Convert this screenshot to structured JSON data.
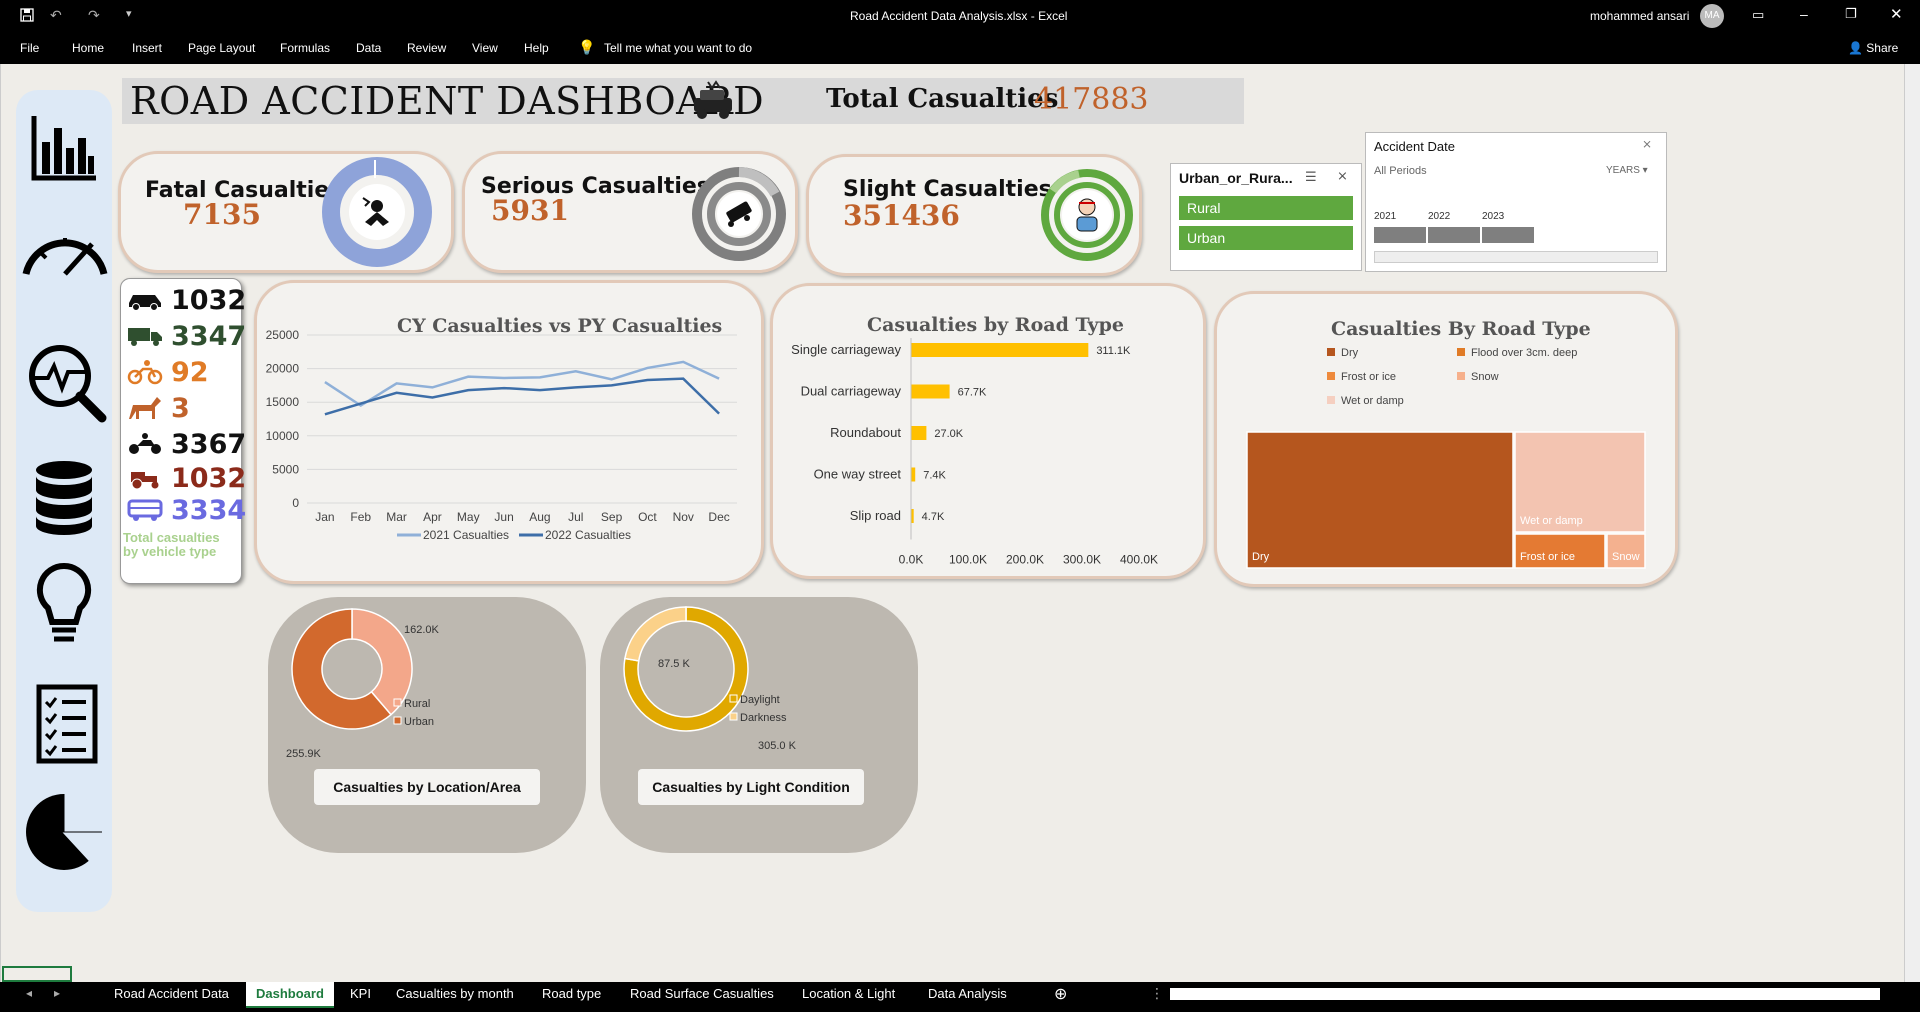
{
  "window": {
    "title": "Road Accident Data Analysis.xlsx  -  Excel",
    "user_name": "mohammed ansari",
    "user_initials": "MA"
  },
  "ribbon": {
    "menu": [
      "File",
      "Home",
      "Insert",
      "Page Layout",
      "Formulas",
      "Data",
      "Review",
      "View",
      "Help"
    ],
    "tell_me": "Tell me what you want to do",
    "share": "Share"
  },
  "header": {
    "title": "ROAD ACCIDENT DASHBOARD",
    "total_label": "Total Casualties",
    "total_value": "417883"
  },
  "kpis": {
    "fatal": {
      "label": "Fatal Casualties",
      "value": "7135",
      "color": "#8ea3d9"
    },
    "serious": {
      "label": "Serious Casualties",
      "value": "5931",
      "color": "#7f7f7f"
    },
    "slight": {
      "label": "Slight Casualties",
      "value": "351436",
      "color": "#5fa83f"
    }
  },
  "vehicles": {
    "items": [
      {
        "icon": "car-icon",
        "value": "1032",
        "color": "#111111"
      },
      {
        "icon": "truck-icon",
        "value": "3347",
        "color": "#2f4f2f"
      },
      {
        "icon": "bicycle-icon",
        "value": "92",
        "color": "#e07b26"
      },
      {
        "icon": "horse-icon",
        "value": "3",
        "color": "#c0622b"
      },
      {
        "icon": "motorcycle-icon",
        "value": "3367",
        "color": "#111111"
      },
      {
        "icon": "tractor-icon",
        "value": "1032",
        "color": "#8b2a1a"
      },
      {
        "icon": "bus-icon",
        "value": "3334",
        "color": "#6a6ae0"
      }
    ],
    "caption_line1": "Total casualties",
    "caption_line2": "by vehicle type"
  },
  "slicer_urban": {
    "title": "Urban_or_Rura...",
    "options": [
      "Rural",
      "Urban"
    ]
  },
  "timeline": {
    "title": "Accident Date",
    "periods": "All Periods",
    "level": "YEARS",
    "years": [
      "2021",
      "2022",
      "2023"
    ]
  },
  "chart_data": [
    {
      "type": "line",
      "title": "CY Casualties vs PY Casualties",
      "categories": [
        "Jan",
        "Feb",
        "Mar",
        "Apr",
        "May",
        "Jun",
        "Aug",
        "Jul",
        "Sep",
        "Oct",
        "Nov",
        "Dec"
      ],
      "ylim": [
        0,
        25000
      ],
      "yticks": [
        "0",
        "5000",
        "10000",
        "15000",
        "20000",
        "25000"
      ],
      "series": [
        {
          "name": "2021 Casualties",
          "color": "#8fb0d8",
          "values": [
            18000,
            14500,
            17800,
            17200,
            18800,
            18600,
            18700,
            19600,
            18400,
            20100,
            21000,
            18500
          ]
        },
        {
          "name": "2022 Casualties",
          "color": "#3d6ea8",
          "values": [
            13200,
            14800,
            16400,
            15700,
            16800,
            17100,
            16800,
            17200,
            17500,
            18300,
            18500,
            13300
          ]
        }
      ],
      "legend": "bottom"
    },
    {
      "type": "bar",
      "orientation": "horizontal",
      "title": "Casualties by Road Type",
      "categories": [
        "Single carriageway",
        "Dual carriageway",
        "Roundabout",
        "One way street",
        "Slip road"
      ],
      "values": [
        311100,
        67700,
        27000,
        7400,
        4700
      ],
      "labels": [
        "311.1K",
        "67.7K",
        "27.0K",
        "7.4K",
        "4.7K"
      ],
      "xticks": [
        "0.0K",
        "100.0K",
        "200.0K",
        "300.0K",
        "400.0K"
      ],
      "xlim": [
        0,
        400000
      ],
      "color": "#ffc000"
    },
    {
      "type": "treemap",
      "title": "Casualties By Road Type",
      "legend": [
        {
          "name": "Dry",
          "color": "#b5561e"
        },
        {
          "name": "Flood over 3cm. deep",
          "color": "#e07b26"
        },
        {
          "name": "Frost or ice",
          "color": "#ee8a3c"
        },
        {
          "name": "Snow",
          "color": "#f6b08b"
        },
        {
          "name": "Wet or damp",
          "color": "#f5cfc0"
        }
      ],
      "tiles": [
        {
          "name": "Dry",
          "label": "Dry",
          "color": "#b5561e"
        },
        {
          "name": "Wet or damp",
          "label": "Wet or damp",
          "color": "#f3c4b1"
        },
        {
          "name": "Frost or ice",
          "label": "Frost or ice",
          "color": "#e47a33"
        },
        {
          "name": "Snow",
          "label": "Snow",
          "color": "#f4b18f"
        }
      ]
    },
    {
      "type": "pie",
      "variant": "donut",
      "title": "Casualties by Location/Area",
      "slices": [
        {
          "name": "Rural",
          "value": 162000,
          "label": "162.0K",
          "color": "#f3a78a"
        },
        {
          "name": "Urban",
          "value": 255900,
          "label": "255.9K",
          "color": "#d2692d"
        }
      ]
    },
    {
      "type": "pie",
      "variant": "donut",
      "title": "Casualties by Light Condition",
      "slices": [
        {
          "name": "Daylight",
          "value": 305000,
          "label": "305.0 K",
          "color": "#e0a800"
        },
        {
          "name": "Darkness",
          "value": 87500,
          "label": "87.5 K",
          "color": "#fbd189"
        }
      ]
    }
  ],
  "tabs": [
    "Road Accident Data",
    "Dashboard",
    "KPI",
    "Casualties by month",
    "Road type",
    "Road Surface Casualties",
    "Location & Light",
    "Data Analysis"
  ],
  "active_tab": "Dashboard"
}
